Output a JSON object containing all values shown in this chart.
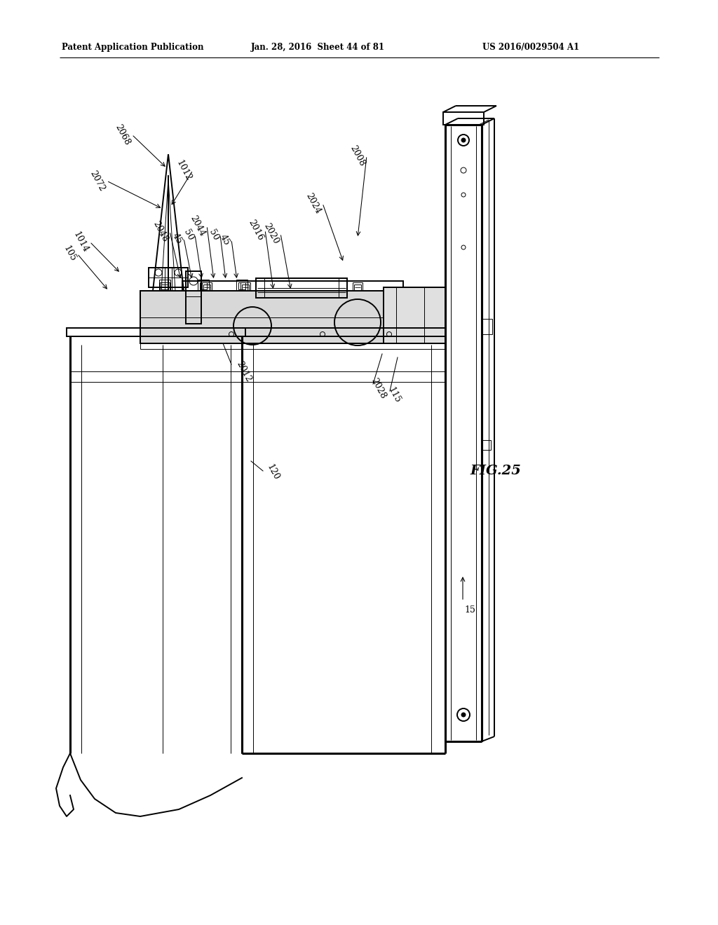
{
  "bg_color": "#ffffff",
  "header_left": "Patent Application Publication",
  "header_center": "Jan. 28, 2016  Sheet 44 of 81",
  "header_right": "US 2016/0029504 A1",
  "fig_label": "FIG.25",
  "lw_main": 1.4,
  "lw_thin": 0.7,
  "lw_thick": 2.2,
  "label_fs": 9
}
